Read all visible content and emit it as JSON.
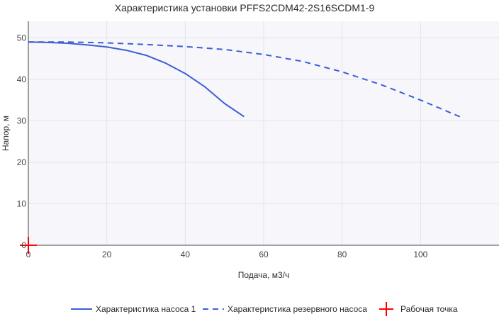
{
  "chart_data": {
    "type": "line",
    "title": "Характеристика установки PFFS2CDM42-2S16SCDM1-9",
    "xlabel": "Подача, м3/ч",
    "ylabel": "Напор, м",
    "xlim": [
      0,
      120
    ],
    "ylim": [
      0,
      54
    ],
    "xticks": [
      "0",
      "20",
      "40",
      "60",
      "80",
      "100"
    ],
    "yticks": [
      "0",
      "10",
      "20",
      "30",
      "40",
      "50"
    ],
    "grid": true,
    "legend_position": "bottom",
    "series": [
      {
        "name": "Характеристика насоса 1",
        "style": "solid",
        "color": "#3b5fd6",
        "x": [
          0,
          5,
          10,
          15,
          20,
          25,
          30,
          35,
          40,
          45,
          50,
          55
        ],
        "y": [
          49,
          48.9,
          48.7,
          48.3,
          47.8,
          47,
          45.8,
          43.9,
          41.4,
          38.2,
          34.2,
          31
        ]
      },
      {
        "name": "Характеристика резервного насоса",
        "style": "dashed",
        "color": "#3b5fd6",
        "x": [
          0,
          10,
          20,
          30,
          40,
          50,
          60,
          70,
          80,
          90,
          100,
          110
        ],
        "y": [
          49,
          49,
          48.8,
          48.4,
          47.9,
          47.2,
          46,
          44.3,
          41.8,
          38.7,
          35,
          31
        ]
      },
      {
        "name": "Рабочая точка",
        "style": "marker",
        "color": "#ff0000",
        "x": [
          0
        ],
        "y": [
          0
        ]
      }
    ]
  }
}
